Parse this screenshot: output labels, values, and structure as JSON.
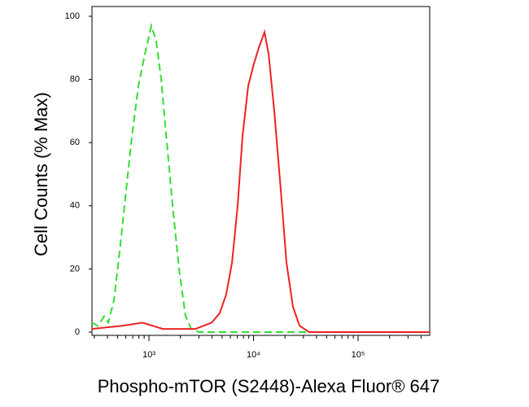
{
  "chart_data": {
    "type": "line",
    "xlabel": "Phospho-mTOR (S2448)-Alexa Fluor® 647",
    "ylabel": "Cell Counts (% Max)",
    "xscale": "log",
    "xlim": [
      285,
      484000
    ],
    "xticks": [
      {
        "value": 1000,
        "label": "10³"
      },
      {
        "value": 10000,
        "label": "10⁴"
      },
      {
        "value": 100000,
        "label": "10⁵"
      }
    ],
    "xminor_ticks": [
      300,
      400,
      500,
      600,
      700,
      800,
      900,
      2000,
      3000,
      4000,
      5000,
      6000,
      7000,
      8000,
      9000,
      20000,
      30000,
      40000,
      50000,
      60000,
      70000,
      80000,
      90000,
      200000,
      300000,
      400000
    ],
    "ylim": [
      0,
      100
    ],
    "yticks": [
      0,
      20,
      40,
      60,
      80,
      100
    ],
    "series": [
      {
        "color": "#33dd33",
        "dash": true,
        "x": [
          285,
          324,
          373,
          408,
          462,
          535,
          605,
          687,
          793,
          914,
          1055,
          1175,
          1309,
          1483,
          1682,
          1941,
          2239,
          2541,
          3034,
          3975,
          484000
        ],
        "values": [
          3,
          2,
          5,
          3,
          10,
          28,
          45,
          62,
          78,
          88,
          97,
          92,
          80,
          60,
          40,
          20,
          5,
          1,
          0,
          0,
          0
        ]
      },
      {
        "color": "#ee2222",
        "dash": false,
        "x": [
          285,
          553,
          867,
          1356,
          2778,
          3975,
          4753,
          5483,
          6223,
          7047,
          7849,
          8896,
          10090,
          11240,
          12740,
          13940,
          15790,
          18230,
          20650,
          23830,
          27540,
          34120,
          484000
        ],
        "values": [
          1,
          2,
          3,
          1,
          1,
          3,
          6,
          12,
          22,
          40,
          62,
          78,
          85,
          90,
          95,
          88,
          70,
          45,
          22,
          8,
          2,
          0,
          0
        ]
      }
    ]
  }
}
